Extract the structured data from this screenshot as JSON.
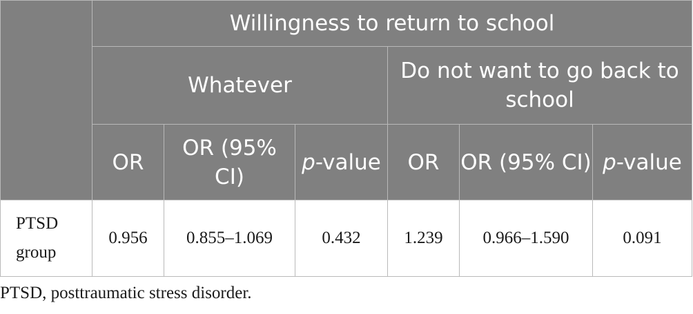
{
  "table": {
    "group_header": "Willingness to return to school",
    "subgroups": [
      "Whatever",
      "Do not want to go back to school"
    ],
    "columns": [
      {
        "pre": "",
        "label": "OR"
      },
      {
        "pre": "",
        "label": "OR (95% CI)"
      },
      {
        "pre": "p",
        "label": "-value"
      },
      {
        "pre": "",
        "label": "OR"
      },
      {
        "pre": "",
        "label": "OR (95% CI)"
      },
      {
        "pre": "p",
        "label": "-value"
      }
    ],
    "rows": [
      {
        "label": "PTSD group",
        "cells": [
          "0.956",
          "0.855–1.069",
          "0.432",
          "1.239",
          "0.966–1.590",
          "0.091"
        ]
      }
    ]
  },
  "footnote": "PTSD, posttraumatic stress disorder."
}
